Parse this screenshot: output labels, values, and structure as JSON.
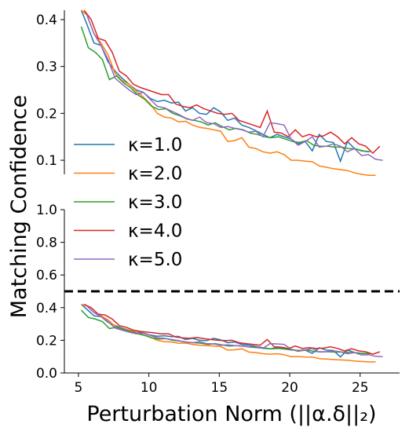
{
  "chart_data": {
    "type": "line",
    "ylabel": "Matching Confidence",
    "xlabel": "Perturbation Norm (||α.δ||₂)",
    "colors": [
      "#1f77b4",
      "#ff7f0e",
      "#2ca02c",
      "#d62728",
      "#9467bd"
    ],
    "series": [
      {
        "name": "κ=1.0",
        "points": [
          [
            5.2,
            0.42
          ],
          [
            5.6,
            0.39
          ],
          [
            6.1,
            0.35
          ],
          [
            6.6,
            0.345
          ],
          [
            7.1,
            0.31
          ],
          [
            7.6,
            0.29
          ],
          [
            8.1,
            0.275
          ],
          [
            8.6,
            0.262
          ],
          [
            9.1,
            0.25
          ],
          [
            9.6,
            0.245
          ],
          [
            10.1,
            0.232
          ],
          [
            10.6,
            0.225
          ],
          [
            11.1,
            0.228
          ],
          [
            11.6,
            0.222
          ],
          [
            12.1,
            0.224
          ],
          [
            12.6,
            0.205
          ],
          [
            13.1,
            0.212
          ],
          [
            13.6,
            0.2
          ],
          [
            14.1,
            0.198
          ],
          [
            14.6,
            0.212
          ],
          [
            15.1,
            0.203
          ],
          [
            15.6,
            0.185
          ],
          [
            16.1,
            0.19
          ],
          [
            16.6,
            0.175
          ],
          [
            17.1,
            0.17
          ],
          [
            17.6,
            0.163
          ],
          [
            18.1,
            0.155
          ],
          [
            18.6,
            0.148
          ],
          [
            19.1,
            0.155
          ],
          [
            19.6,
            0.15
          ],
          [
            20.1,
            0.145
          ],
          [
            20.6,
            0.135
          ],
          [
            21.1,
            0.14
          ],
          [
            21.6,
            0.12
          ],
          [
            22.1,
            0.155
          ],
          [
            22.6,
            0.14
          ],
          [
            23.1,
            0.138
          ],
          [
            23.6,
            0.098
          ],
          [
            24.1,
            0.14
          ],
          [
            24.6,
            0.125
          ],
          [
            25.1,
            0.12
          ],
          [
            25.6,
            0.118
          ]
        ]
      },
      {
        "name": "κ=2.0",
        "points": [
          [
            5.2,
            0.42
          ],
          [
            5.6,
            0.41
          ],
          [
            6.1,
            0.37
          ],
          [
            6.6,
            0.35
          ],
          [
            7.1,
            0.325
          ],
          [
            7.6,
            0.285
          ],
          [
            8.1,
            0.27
          ],
          [
            8.6,
            0.262
          ],
          [
            9.1,
            0.248
          ],
          [
            9.6,
            0.235
          ],
          [
            10.1,
            0.22
          ],
          [
            10.6,
            0.2
          ],
          [
            11.1,
            0.192
          ],
          [
            11.6,
            0.19
          ],
          [
            12.1,
            0.182
          ],
          [
            12.6,
            0.183
          ],
          [
            13.1,
            0.175
          ],
          [
            13.6,
            0.17
          ],
          [
            14.1,
            0.168
          ],
          [
            14.6,
            0.165
          ],
          [
            15.1,
            0.162
          ],
          [
            15.6,
            0.14
          ],
          [
            16.1,
            0.142
          ],
          [
            16.6,
            0.148
          ],
          [
            17.1,
            0.128
          ],
          [
            17.6,
            0.125
          ],
          [
            18.1,
            0.118
          ],
          [
            18.6,
            0.115
          ],
          [
            19.1,
            0.118
          ],
          [
            19.6,
            0.112
          ],
          [
            20.1,
            0.1
          ],
          [
            20.6,
            0.1
          ],
          [
            21.1,
            0.098
          ],
          [
            21.6,
            0.097
          ],
          [
            22.1,
            0.088
          ],
          [
            22.6,
            0.085
          ],
          [
            23.1,
            0.082
          ],
          [
            23.6,
            0.08
          ],
          [
            24.1,
            0.078
          ],
          [
            24.6,
            0.073
          ],
          [
            25.1,
            0.07
          ],
          [
            25.6,
            0.068
          ],
          [
            26.1,
            0.068
          ]
        ]
      },
      {
        "name": "κ=3.0",
        "points": [
          [
            5.2,
            0.385
          ],
          [
            5.7,
            0.34
          ],
          [
            6.2,
            0.33
          ],
          [
            6.7,
            0.315
          ],
          [
            7.2,
            0.272
          ],
          [
            7.7,
            0.28
          ],
          [
            8.2,
            0.265
          ],
          [
            8.7,
            0.255
          ],
          [
            9.2,
            0.24
          ],
          [
            9.7,
            0.23
          ],
          [
            10.2,
            0.215
          ],
          [
            10.7,
            0.208
          ],
          [
            11.2,
            0.21
          ],
          [
            11.7,
            0.2
          ],
          [
            12.2,
            0.195
          ],
          [
            12.7,
            0.188
          ],
          [
            13.2,
            0.185
          ],
          [
            13.7,
            0.182
          ],
          [
            14.2,
            0.175
          ],
          [
            14.7,
            0.18
          ],
          [
            15.2,
            0.172
          ],
          [
            15.7,
            0.165
          ],
          [
            16.2,
            0.168
          ],
          [
            16.7,
            0.165
          ],
          [
            17.2,
            0.158
          ],
          [
            17.7,
            0.155
          ],
          [
            18.2,
            0.15
          ],
          [
            18.7,
            0.148
          ],
          [
            19.2,
            0.15
          ],
          [
            19.7,
            0.145
          ],
          [
            20.2,
            0.14
          ],
          [
            20.7,
            0.138
          ],
          [
            21.2,
            0.142
          ],
          [
            21.7,
            0.132
          ],
          [
            22.2,
            0.13
          ],
          [
            22.7,
            0.13
          ],
          [
            23.2,
            0.128
          ],
          [
            23.7,
            0.128
          ],
          [
            24.2,
            0.125
          ],
          [
            24.7,
            0.124
          ],
          [
            25.2,
            0.12
          ],
          [
            25.7,
            0.118
          ]
        ]
      },
      {
        "name": "κ=4.0",
        "points": [
          [
            5.4,
            0.42
          ],
          [
            5.9,
            0.4
          ],
          [
            6.4,
            0.36
          ],
          [
            6.9,
            0.355
          ],
          [
            7.4,
            0.33
          ],
          [
            7.9,
            0.29
          ],
          [
            8.4,
            0.28
          ],
          [
            8.9,
            0.262
          ],
          [
            9.4,
            0.255
          ],
          [
            9.9,
            0.25
          ],
          [
            10.4,
            0.245
          ],
          [
            10.9,
            0.24
          ],
          [
            11.4,
            0.24
          ],
          [
            11.9,
            0.22
          ],
          [
            12.4,
            0.215
          ],
          [
            12.9,
            0.212
          ],
          [
            13.4,
            0.218
          ],
          [
            13.9,
            0.21
          ],
          [
            14.4,
            0.205
          ],
          [
            14.9,
            0.2
          ],
          [
            15.4,
            0.198
          ],
          [
            15.9,
            0.2
          ],
          [
            16.4,
            0.185
          ],
          [
            16.9,
            0.18
          ],
          [
            17.4,
            0.175
          ],
          [
            17.9,
            0.17
          ],
          [
            18.4,
            0.205
          ],
          [
            18.9,
            0.16
          ],
          [
            19.4,
            0.158
          ],
          [
            19.9,
            0.15
          ],
          [
            20.4,
            0.165
          ],
          [
            20.9,
            0.15
          ],
          [
            21.4,
            0.155
          ],
          [
            21.9,
            0.15
          ],
          [
            22.4,
            0.152
          ],
          [
            22.9,
            0.16
          ],
          [
            23.4,
            0.15
          ],
          [
            23.9,
            0.135
          ],
          [
            24.4,
            0.148
          ],
          [
            24.9,
            0.135
          ],
          [
            25.4,
            0.13
          ],
          [
            25.9,
            0.115
          ],
          [
            26.4,
            0.13
          ]
        ]
      },
      {
        "name": "κ=5.0",
        "points": [
          [
            5.6,
            0.41
          ],
          [
            6.1,
            0.37
          ],
          [
            6.6,
            0.345
          ],
          [
            7.1,
            0.315
          ],
          [
            7.6,
            0.275
          ],
          [
            8.1,
            0.262
          ],
          [
            8.6,
            0.25
          ],
          [
            9.1,
            0.24
          ],
          [
            9.6,
            0.245
          ],
          [
            10.1,
            0.23
          ],
          [
            10.6,
            0.215
          ],
          [
            11.1,
            0.212
          ],
          [
            11.6,
            0.205
          ],
          [
            12.1,
            0.198
          ],
          [
            12.6,
            0.19
          ],
          [
            13.1,
            0.185
          ],
          [
            13.6,
            0.192
          ],
          [
            14.1,
            0.18
          ],
          [
            14.6,
            0.178
          ],
          [
            15.1,
            0.17
          ],
          [
            15.6,
            0.172
          ],
          [
            16.1,
            0.168
          ],
          [
            16.6,
            0.165
          ],
          [
            17.1,
            0.16
          ],
          [
            17.6,
            0.162
          ],
          [
            18.1,
            0.15
          ],
          [
            18.6,
            0.18
          ],
          [
            19.1,
            0.178
          ],
          [
            19.6,
            0.175
          ],
          [
            20.1,
            0.145
          ],
          [
            20.6,
            0.132
          ],
          [
            21.1,
            0.14
          ],
          [
            21.6,
            0.15
          ],
          [
            22.1,
            0.128
          ],
          [
            22.6,
            0.13
          ],
          [
            23.1,
            0.135
          ],
          [
            23.6,
            0.13
          ],
          [
            24.1,
            0.118
          ],
          [
            24.6,
            0.125
          ],
          [
            25.1,
            0.11
          ],
          [
            25.6,
            0.112
          ],
          [
            26.1,
            0.102
          ],
          [
            26.6,
            0.1
          ]
        ]
      }
    ],
    "panels": [
      {
        "id": "top",
        "ylim": [
          0.07,
          0.42
        ],
        "yticks": [
          "0.1",
          "0.2",
          "0.3",
          "0.4"
        ],
        "ytick_values": [
          0.1,
          0.2,
          0.3,
          0.4
        ],
        "show_xaxis": false
      },
      {
        "id": "bottom",
        "ylim": [
          0.0,
          1.0
        ],
        "yticks": [
          "0.0",
          "0.2",
          "0.4",
          "0.6",
          "0.8",
          "1.0"
        ],
        "ytick_values": [
          0.0,
          0.2,
          0.4,
          0.6,
          0.8,
          1.0
        ],
        "show_xaxis": true,
        "threshold": 0.5
      }
    ],
    "xlim": [
      4.0,
      27.8
    ],
    "xticks": [
      "5",
      "10",
      "15",
      "20",
      "25"
    ],
    "xtick_values": [
      5,
      10,
      15,
      20,
      25
    ],
    "legend": {
      "placement": "center-left",
      "entries": [
        "κ=1.0",
        "κ=2.0",
        "κ=3.0",
        "κ=4.0",
        "κ=5.0"
      ]
    }
  }
}
